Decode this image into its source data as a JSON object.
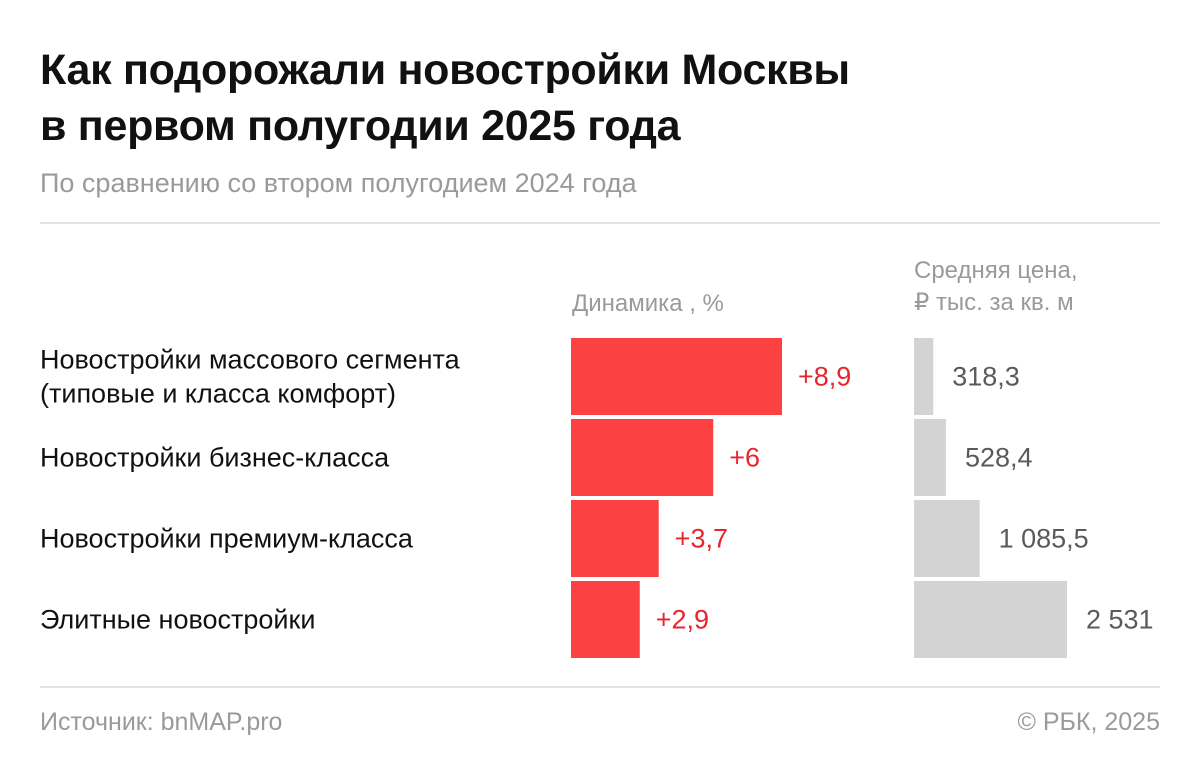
{
  "header": {
    "title_line1": "Как подорожали новостройки Москвы",
    "title_line2": "в первом полугодии 2025 года",
    "subtitle": "По сравнению со втором полугодием 2024 года"
  },
  "columns": {
    "dynamics": "Динамика , %",
    "price_line1": "Средняя цена,",
    "price_line2": "₽ тыс. за кв. м"
  },
  "chart_data": {
    "type": "bar",
    "orientation": "horizontal",
    "categories": [
      [
        "Новостройки массового сегмента",
        "(типовые и класса комфорт)"
      ],
      [
        "Новостройки бизнес-класса"
      ],
      [
        "Новостройки премиум-класса"
      ],
      [
        "Элитные новостройки"
      ]
    ],
    "series": [
      {
        "name": "Динамика , %",
        "values": [
          8.9,
          6,
          3.7,
          2.9
        ],
        "labels": [
          "+8,9",
          "+6",
          "+3,7",
          "+2,9"
        ],
        "color": "#fb4141"
      },
      {
        "name": "Средняя цена, ₽ тыс. за кв. м",
        "values": [
          318.3,
          528.4,
          1085.5,
          2531
        ],
        "labels": [
          "318,3",
          "528,4",
          "1 085,5",
          "2 531"
        ],
        "color": "#d3d3d3"
      }
    ],
    "grid": false
  },
  "footer": {
    "source": "Источник: bnMAP.pro",
    "copyright": "© РБК, 2025"
  },
  "colors": {
    "accent_red": "#fb4141",
    "value_red": "#e8252c",
    "gray_bar": "#d3d3d3",
    "muted_text": "#9a9a9a"
  }
}
